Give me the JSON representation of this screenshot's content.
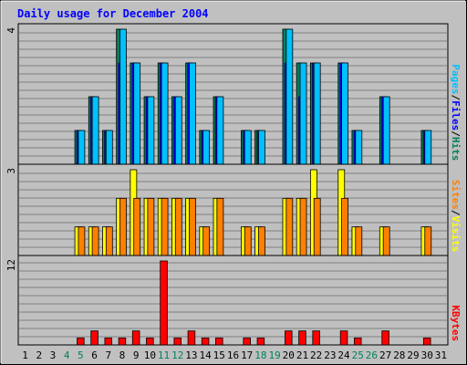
{
  "title": "Daily usage for December 2004",
  "colors": {
    "background": "#c0c0c0",
    "hits": "#00805c",
    "files": "#0000ff",
    "pages": "#00c0ff",
    "visits": "#ffff00",
    "sites": "#ff8000",
    "kbytes": "#ff0000",
    "weekend_day": "#00805c",
    "title": "#0000ff"
  },
  "chart_data": [
    {
      "type": "bar",
      "panel": "top",
      "ymax_label": "4",
      "ylim": [
        0,
        4
      ],
      "grid": true,
      "legend": [
        {
          "text": "Hits",
          "color": "#00805c"
        },
        {
          "text": "/",
          "color": "#000000"
        },
        {
          "text": "Files",
          "color": "#0000ff"
        },
        {
          "text": "/",
          "color": "#000000"
        },
        {
          "text": "Pages",
          "color": "#00c0ff"
        }
      ],
      "legend_placement": "right, vertical",
      "categories": [
        "1",
        "2",
        "3",
        "4",
        "5",
        "6",
        "7",
        "8",
        "9",
        "10",
        "11",
        "12",
        "13",
        "14",
        "15",
        "16",
        "17",
        "18",
        "19",
        "20",
        "21",
        "22",
        "23",
        "24",
        "25",
        "26",
        "27",
        "28",
        "29",
        "30",
        "31"
      ],
      "series": [
        {
          "name": "Hits",
          "values": [
            0,
            0,
            0,
            0,
            1,
            2,
            1,
            4,
            3,
            2,
            3,
            2,
            3,
            1,
            2,
            0,
            1,
            1,
            0,
            4,
            3,
            3,
            0,
            3,
            1,
            0,
            2,
            0,
            0,
            1,
            0
          ]
        },
        {
          "name": "Files",
          "values": [
            0,
            0,
            0,
            0,
            1,
            2,
            1,
            3,
            3,
            2,
            3,
            2,
            3,
            1,
            2,
            0,
            1,
            1,
            0,
            3,
            2,
            3,
            0,
            3,
            1,
            0,
            2,
            0,
            0,
            1,
            0
          ]
        },
        {
          "name": "Pages",
          "values": [
            0,
            0,
            0,
            0,
            1,
            2,
            1,
            4,
            3,
            2,
            3,
            2,
            3,
            1,
            2,
            0,
            1,
            1,
            0,
            4,
            3,
            3,
            0,
            3,
            1,
            0,
            2,
            0,
            0,
            1,
            0
          ]
        }
      ]
    },
    {
      "type": "bar",
      "panel": "middle",
      "ymax_label": "3",
      "ylim": [
        0,
        3
      ],
      "grid": true,
      "legend": [
        {
          "text": "Visits",
          "color": "#ffff00"
        },
        {
          "text": "/",
          "color": "#000000"
        },
        {
          "text": "Sites",
          "color": "#ff8000"
        }
      ],
      "legend_placement": "right, vertical",
      "categories": [
        "1",
        "2",
        "3",
        "4",
        "5",
        "6",
        "7",
        "8",
        "9",
        "10",
        "11",
        "12",
        "13",
        "14",
        "15",
        "16",
        "17",
        "18",
        "19",
        "20",
        "21",
        "22",
        "23",
        "24",
        "25",
        "26",
        "27",
        "28",
        "29",
        "30",
        "31"
      ],
      "series": [
        {
          "name": "Visits",
          "values": [
            0,
            0,
            0,
            0,
            1,
            1,
            1,
            2,
            3,
            2,
            2,
            2,
            2,
            1,
            2,
            0,
            1,
            1,
            0,
            2,
            2,
            3,
            0,
            3,
            1,
            0,
            1,
            0,
            0,
            1,
            0
          ]
        },
        {
          "name": "Sites",
          "values": [
            0,
            0,
            0,
            0,
            1,
            1,
            1,
            2,
            2,
            2,
            2,
            2,
            2,
            1,
            2,
            0,
            1,
            1,
            0,
            2,
            2,
            2,
            0,
            2,
            1,
            0,
            1,
            0,
            0,
            1,
            0
          ]
        }
      ]
    },
    {
      "type": "bar",
      "panel": "bottom",
      "ymax_label": "12",
      "ylim": [
        0,
        12
      ],
      "grid": true,
      "legend": [
        {
          "text": "KBytes",
          "color": "#ff0000"
        }
      ],
      "legend_placement": "right, vertical",
      "categories": [
        "1",
        "2",
        "3",
        "4",
        "5",
        "6",
        "7",
        "8",
        "9",
        "10",
        "11",
        "12",
        "13",
        "14",
        "15",
        "16",
        "17",
        "18",
        "19",
        "20",
        "21",
        "22",
        "23",
        "24",
        "25",
        "26",
        "27",
        "28",
        "29",
        "30",
        "31"
      ],
      "weekend_days": [
        "4",
        "5",
        "11",
        "12",
        "18",
        "19",
        "25",
        "26"
      ],
      "series": [
        {
          "name": "KBytes",
          "values": [
            0,
            0,
            0,
            0,
            1,
            2,
            1,
            1,
            2,
            1,
            12,
            1,
            2,
            1,
            1,
            0,
            1,
            1,
            0,
            2,
            2,
            2,
            0,
            2,
            1,
            0,
            2,
            0,
            0,
            1,
            0
          ]
        }
      ]
    }
  ]
}
